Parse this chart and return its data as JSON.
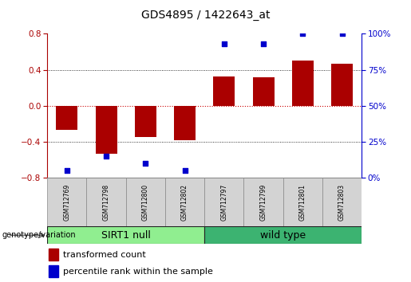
{
  "title": "GDS4895 / 1422643_at",
  "samples": [
    "GSM712769",
    "GSM712798",
    "GSM712800",
    "GSM712802",
    "GSM712797",
    "GSM712799",
    "GSM712801",
    "GSM712803"
  ],
  "red_bars": [
    -0.27,
    -0.53,
    -0.35,
    -0.38,
    0.33,
    0.32,
    0.5,
    0.47
  ],
  "blue_dots_pct": [
    5,
    15,
    10,
    5,
    93,
    93,
    100,
    100
  ],
  "groups": [
    {
      "label": "SIRT1 null",
      "color": "#90EE90",
      "start": 0,
      "end": 4
    },
    {
      "label": "wild type",
      "color": "#3CB371",
      "start": 4,
      "end": 8
    }
  ],
  "ylim": [
    -0.8,
    0.8
  ],
  "yticks": [
    -0.8,
    -0.4,
    0.0,
    0.4,
    0.8
  ],
  "right_yticks": [
    0,
    25,
    50,
    75,
    100
  ],
  "right_ylim": [
    0,
    100
  ],
  "bar_color": "#AA0000",
  "dot_color": "#0000CC",
  "zero_line_color": "#CC0000",
  "grid_color": "#000000",
  "title_fontsize": 10,
  "tick_fontsize": 7.5,
  "label_fontsize": 8,
  "legend_fontsize": 8,
  "group_label_fontsize": 9,
  "sample_label_fontsize": 5.5
}
